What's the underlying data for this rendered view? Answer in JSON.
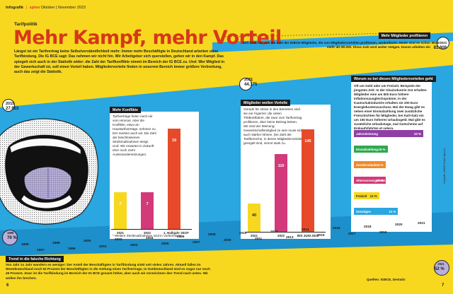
{
  "header": {
    "section": "Infografik",
    "magazine": "sploo",
    "date": "Oktober | November 2023"
  },
  "kicker": "Tarifpolitik",
  "title": "Mehr Kampf, mehr Vorteil",
  "intro": "Längst ist ein Tarifvertrag keine Selbstverständlichkeit mehr: Immer mehr Beschäftigte in Deutschland arbeiten ohne Tarifbindung. Die IG BCE sagt: Das nehmen wir nicht hin. Wir Arbeitgeber sich querstellen, gehen wir in den Kampf. Das spiegelt sich auch in der Statistik wider: die Zahl der Tarifkonflikte nimmt im Bereich der IG BCE zu. Und: Wer Mitglied in der Gewerkschaft ist, soll einen Vorteil haben. Mitgliedervorteile finden in unserem Bereich immer größere Verbreitung, auch das zeigt die Statistik.",
  "stats": {
    "left": {
      "year": "2015",
      "value": "27.953"
    },
    "mid": {
      "year": "2021",
      "value": "44.175"
    },
    "right": {
      "year": "BIS 6/2023",
      "value": "81.808"
    },
    "low_left": {
      "year": "1996",
      "value": "76 %"
    },
    "low_right": {
      "year": "2021",
      "value": "52 %"
    }
  },
  "members_box": {
    "head": "Mehr Mitglieder profitieren",
    "text": "Seit 2015 hat sich die Zahl der IGBCE-Mitglieder, die von Mitgliedervorteilen profitieren, verdreifacht. Heute sind es schon mehr als 80.000. Diese Zahl wird weiter steigen. Davon arbeiten ein"
  },
  "conflicts": {
    "head": "Mehr Konflikte",
    "text": "Tarifverträge fielen noch nie vom Himmel. Aber die Konflikte, etwa um Haustarifverträge, nehmen zu. Der merken auch wir. Die Zahl der beschlossenen Streikmaßnahmen steigt. Und: Wir erwarten in Zukunft eher noch mehr Auseinandersetzungen.",
    "note": "* Weitere Streikmaßnahmen sind in Vorbereitung"
  },
  "members_win": {
    "head": "Mitglieder wollen Vorteile",
    "text": "Gerade für Aktive in den Betrieben sind sie ein Ärgernis: die vielen Trittbrettfahrer, die zwar vom Tarifvertrag profitieren, aber keine Beitrag leisten. Wir sind der Meinung: Gewerkschaftsmitglied zu sein muss sich auch stärker lohnen. Die Zahl der Tarifbereiche, in denen Mitgliedervorteile geregelt sind, nimmt stark zu."
  },
  "benefits": {
    "head": "Worum es bei diesen Mitgliedervorteilen geht",
    "text": "Oft um Geld oder um Freizeit. Beispiele der jüngsten Zeit: In der Glasindustrie Ost erhalten Mitglieder eine um 500 Euro höhere Inflationsausgleichsprämie; in der Kautschukindustrie erhalten sie 200 Euro Energiekostenzuschuss. Bei der Ewag gibt es neben einer Einmalzahlung zwei zusätzliche Freischichten für Mitglieder, bei Kali+Salz ein um 150 Euro höheres Urlaubsgeld. Mal gibt es zusätzliche Urlaubstage, mal Gutscheine auf Einkaufsfahrten et cetera."
  },
  "trend": {
    "head": "Trend in die falsche Richtung",
    "text": "Von Jahr zu Jahr wandern es weniger: Der Anteil der Beschäftigten in Tarifbindung sinkt seit vielen Jahren. Aktuell fallen im Westdeutschland noch 52 Prozent der Beschäftigten in die Geltung eines Tarifvertrags. In Ostdeutschland sind es sogar nur noch 45 Prozent. Zwar ist die Tarifbindung im Bereich der IG BCE gesamt höher, aber auch wir verzeichnen den Trend nach unten. Wir wollen ihn brechen."
  },
  "source": "Quellen: IGBCE, Destatis",
  "page_left": "6",
  "page_right": "7",
  "side_credit": "Infografik: IGBCE Grafik: Agentur",
  "timeline_years": [
    "1996",
    "1998",
    "2000",
    "2002",
    "2004",
    "2006",
    "2008",
    "2010",
    "2012",
    "2014",
    "2016",
    "2018",
    "2020",
    "2021"
  ],
  "timeline_years_odd": [
    "1997",
    "1999",
    "2001",
    "2003",
    "2005",
    "2007",
    "2009",
    "2011",
    "2013",
    "2015",
    "2017",
    "2019"
  ],
  "colors": {
    "yellow": "#f7d81f",
    "red": "#d7371b",
    "blue": "#2aa6e0",
    "green": "#2fa84f",
    "orange": "#f08a2a",
    "purple": "#8f3fa6",
    "magenta": "#d23a7a",
    "lavender": "#b9b0dc"
  },
  "chart_data": [
    {
      "type": "bar",
      "title": "Mehr Konflikte",
      "categories": [
        "2021",
        "2022",
        "1. Halbjahr 2023*"
      ],
      "values": [
        7,
        7,
        19
      ],
      "colors": [
        "#f7d81f",
        "#d23a7a",
        "#e64a2a"
      ],
      "ylim": [
        0,
        20
      ]
    },
    {
      "type": "bar",
      "title": "Mitglieder wollen Vorteile",
      "categories": [
        "2021",
        "2022",
        "BIS JUNI 2023"
      ],
      "values": [
        40,
        110,
        145
      ],
      "colors": [
        "#f7d81f",
        "#d23a7a",
        "#e64a2a"
      ],
      "ylim": [
        0,
        150
      ]
    },
    {
      "type": "bar",
      "title": "Worum es bei diesen Mitgliedervorteilen geht",
      "categories": [
        "Jahresleistung",
        "Einmalzahlung",
        "Sonderurlaub",
        "Altersvorsorge/VWL",
        "Freizeit",
        "Sonstiges"
      ],
      "values": [
        33,
        16,
        15,
        15,
        12,
        21
      ],
      "value_labels": [
        "33 %",
        "16 %",
        "15 %",
        "15 %",
        "12 %",
        "21 %"
      ],
      "colors": [
        "#8f3fa6",
        "#2fa84f",
        "#f08a2a",
        "#d23a7a",
        "#f7d81f",
        "#2aa6e0"
      ],
      "xlim": [
        0,
        35
      ]
    }
  ]
}
